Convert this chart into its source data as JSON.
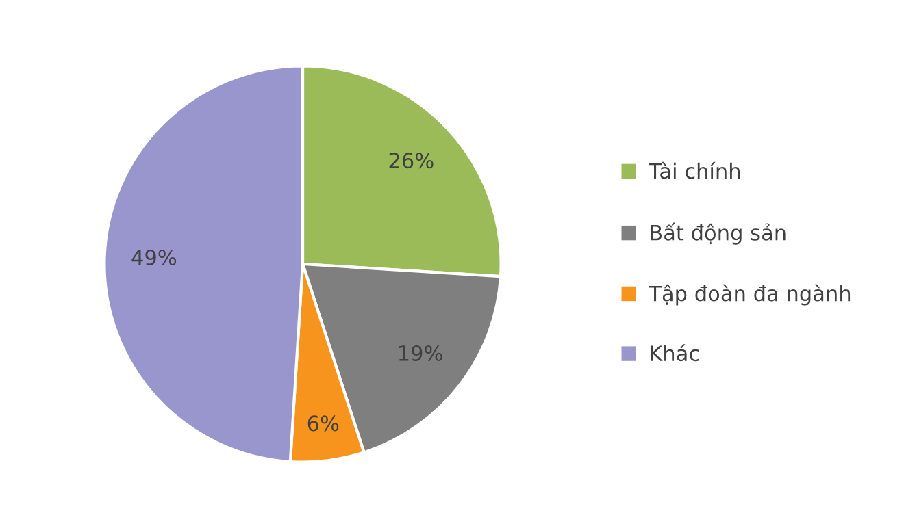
{
  "chart_data": {
    "type": "pie",
    "categories": [
      "Tài chính",
      "Bất động sản",
      "Tập đoàn đa ngành",
      "Khác"
    ],
    "values": [
      26,
      19,
      6,
      49
    ],
    "colors": [
      "#9bbb59",
      "#7f7f7f",
      "#f7941d",
      "#9896cc"
    ],
    "value_labels": [
      "26%",
      "19%",
      "6%",
      "49%"
    ],
    "legend": "right"
  }
}
